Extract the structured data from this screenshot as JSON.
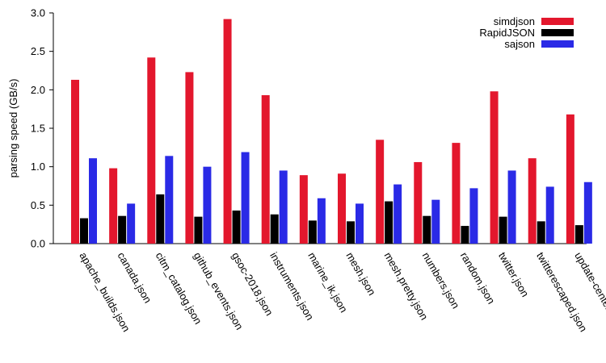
{
  "chart_data": {
    "type": "bar",
    "title": "",
    "xlabel": "",
    "ylabel": "parsing speed (GB/s)",
    "ylim": [
      0,
      3
    ],
    "yticks": [
      0.0,
      0.5,
      1.0,
      1.5,
      2.0,
      2.5,
      3.0
    ],
    "ytick_labels": [
      "0.0",
      "0.5",
      "1.0",
      "1.5",
      "2.0",
      "2.5",
      "3.0"
    ],
    "legend_position": "top-right",
    "categories": [
      "apache_builds.json",
      "canada.json",
      "citm_catalog.json",
      "github_events.json",
      "gsoc-2018.json",
      "instruments.json",
      "marine_ik.json",
      "mesh.json",
      "mesh.pretty.json",
      "numbers.json",
      "random.json",
      "twitter.json",
      "twitterescaped.json",
      "update-center.json"
    ],
    "series": [
      {
        "name": "simdjson",
        "color": "#e3172d",
        "values": [
          2.13,
          0.98,
          2.42,
          2.23,
          2.92,
          1.93,
          0.89,
          0.91,
          1.35,
          1.06,
          1.31,
          1.98,
          1.11,
          1.68
        ]
      },
      {
        "name": "RapidJSON",
        "color": "#000000",
        "values": [
          0.33,
          0.36,
          0.64,
          0.35,
          0.43,
          0.38,
          0.3,
          0.29,
          0.55,
          0.36,
          0.23,
          0.35,
          0.29,
          0.24
        ]
      },
      {
        "name": "sajson",
        "color": "#2a2ae6",
        "values": [
          1.11,
          0.52,
          1.14,
          1.0,
          1.19,
          0.95,
          0.59,
          0.52,
          0.77,
          0.57,
          0.72,
          0.95,
          0.74,
          0.8
        ]
      }
    ]
  }
}
